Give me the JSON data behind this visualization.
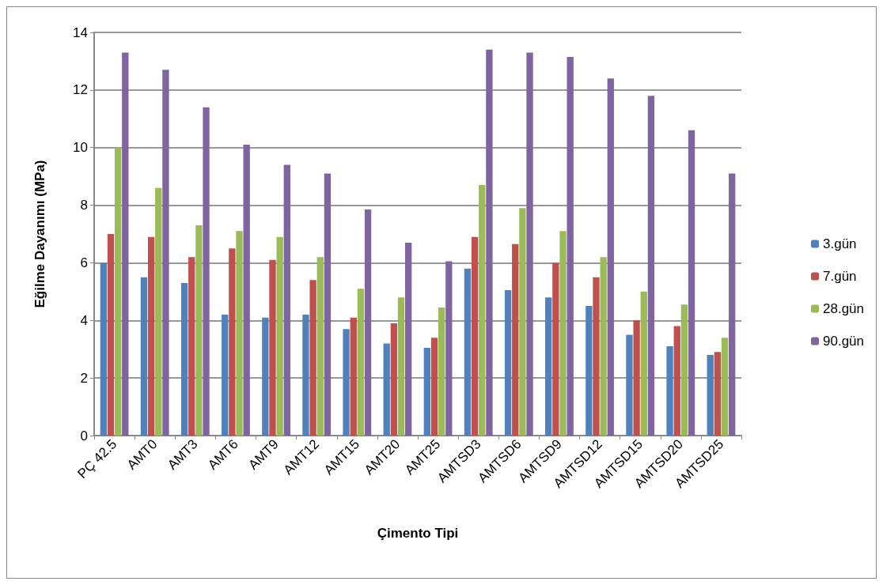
{
  "chart_data": {
    "type": "bar",
    "xlabel": "Çimento Tipi",
    "ylabel": "Eğilme Dayanımı (MPa)",
    "categories": [
      "PÇ 42.5",
      "AMT0",
      "AMT3",
      "AMT6",
      "AMT9",
      "AMT12",
      "AMT15",
      "AMT20",
      "AMT25",
      "AMTSD3",
      "AMTSD6",
      "AMTSD9",
      "AMTSD12",
      "AMTSD15",
      "AMTSD20",
      "AMTSD25"
    ],
    "series": [
      {
        "name": "3.gün",
        "color": "#4f81bd",
        "values": [
          6.0,
          5.5,
          5.3,
          4.2,
          4.1,
          4.2,
          3.7,
          3.2,
          3.05,
          5.8,
          5.05,
          4.8,
          4.5,
          3.5,
          3.1,
          2.8
        ]
      },
      {
        "name": "7.gün",
        "color": "#c0504d",
        "values": [
          7.0,
          6.9,
          6.2,
          6.5,
          6.1,
          5.4,
          4.1,
          3.9,
          3.4,
          6.9,
          6.65,
          6.0,
          5.5,
          4.0,
          3.8,
          2.9
        ]
      },
      {
        "name": "28.gün",
        "color": "#9bbb59",
        "values": [
          10.0,
          8.6,
          7.3,
          7.1,
          6.9,
          6.2,
          5.1,
          4.8,
          4.45,
          8.7,
          7.9,
          7.1,
          6.2,
          5.0,
          4.55,
          3.4
        ]
      },
      {
        "name": "90.gün",
        "color": "#8064a2",
        "values": [
          13.3,
          12.7,
          11.4,
          10.1,
          9.4,
          9.1,
          7.85,
          6.7,
          6.05,
          13.4,
          13.3,
          13.15,
          12.4,
          11.8,
          10.6,
          9.1
        ]
      }
    ],
    "ylim": [
      0,
      14
    ],
    "yticks": [
      0,
      2,
      4,
      6,
      8,
      10,
      12,
      14
    ],
    "grid": "y",
    "legend": "right"
  }
}
